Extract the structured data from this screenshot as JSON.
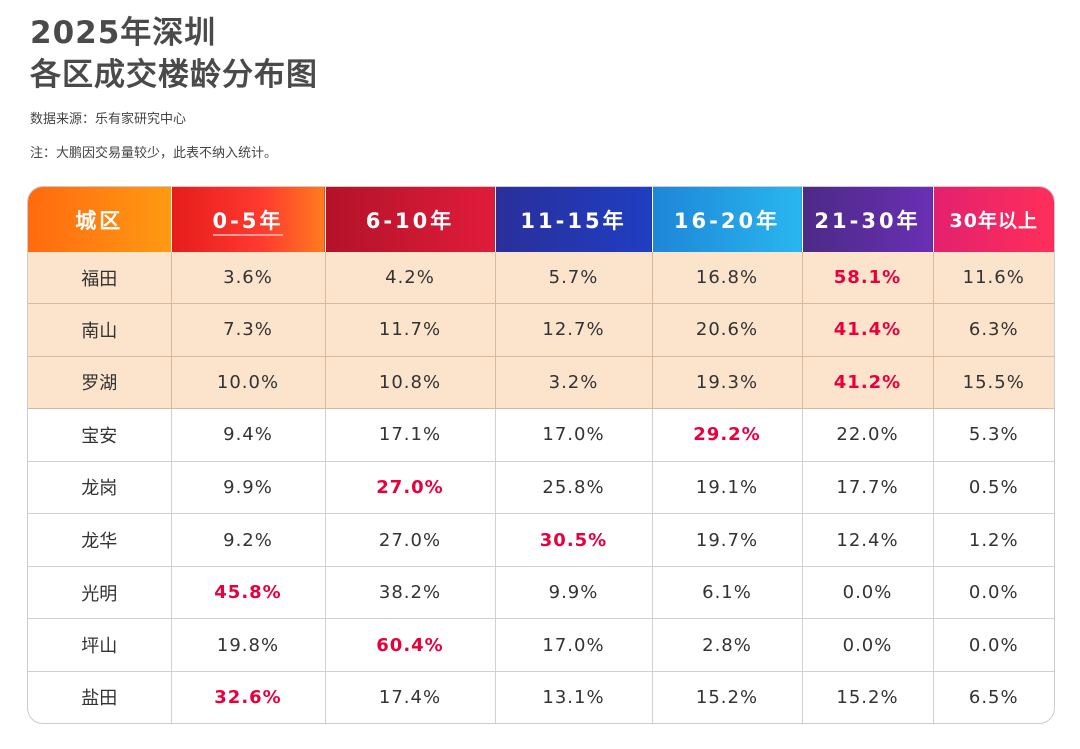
{
  "title_line1": "2025年深圳",
  "title_line2": "各区成交楼龄分布图",
  "source": "数据来源：乐有家研究中心",
  "note": "注：大鹏因交易量较少，此表不纳入统计。",
  "colors": {
    "highlight_row_bg": "#fce3cc",
    "max_value_text": "#e8003d",
    "header_colors": [
      "#ff7d12",
      "#f02a22",
      "#c8182f",
      "#2335a8",
      "#22a0e3",
      "#5b2c9c",
      "#f0285f"
    ]
  },
  "chart_data": {
    "type": "table",
    "title": "2025年深圳各区成交楼龄分布图",
    "columns": [
      "城区",
      "0-5年",
      "6-10年",
      "11-15年",
      "16-20年",
      "21-30年",
      "30年以上"
    ],
    "highlighted_rows": [
      "福田",
      "南山",
      "罗湖"
    ],
    "rows": [
      {
        "district": "福田",
        "values": [
          "3.6%",
          "4.2%",
          "5.7%",
          "16.8%",
          "58.1%",
          "11.6%"
        ],
        "max_index": 4
      },
      {
        "district": "南山",
        "values": [
          "7.3%",
          "11.7%",
          "12.7%",
          "20.6%",
          "41.4%",
          "6.3%"
        ],
        "max_index": 4
      },
      {
        "district": "罗湖",
        "values": [
          "10.0%",
          "10.8%",
          "3.2%",
          "19.3%",
          "41.2%",
          "15.5%"
        ],
        "max_index": 4
      },
      {
        "district": "宝安",
        "values": [
          "9.4%",
          "17.1%",
          "17.0%",
          "29.2%",
          "22.0%",
          "5.3%"
        ],
        "max_index": 3
      },
      {
        "district": "龙岗",
        "values": [
          "9.9%",
          "27.0%",
          "25.8%",
          "19.1%",
          "17.7%",
          "0.5%"
        ],
        "max_index": 1
      },
      {
        "district": "龙华",
        "values": [
          "9.2%",
          "27.0%",
          "30.5%",
          "19.7%",
          "12.4%",
          "1.2%"
        ],
        "max_index": 2
      },
      {
        "district": "光明",
        "values": [
          "45.8%",
          "38.2%",
          "9.9%",
          "6.1%",
          "0.0%",
          "0.0%"
        ],
        "max_index": 0
      },
      {
        "district": "坪山",
        "values": [
          "19.8%",
          "60.4%",
          "17.0%",
          "2.8%",
          "0.0%",
          "0.0%"
        ],
        "max_index": 1
      },
      {
        "district": "盐田",
        "values": [
          "32.6%",
          "17.4%",
          "13.1%",
          "15.2%",
          "15.2%",
          "6.5%"
        ],
        "max_index": 0
      }
    ]
  }
}
